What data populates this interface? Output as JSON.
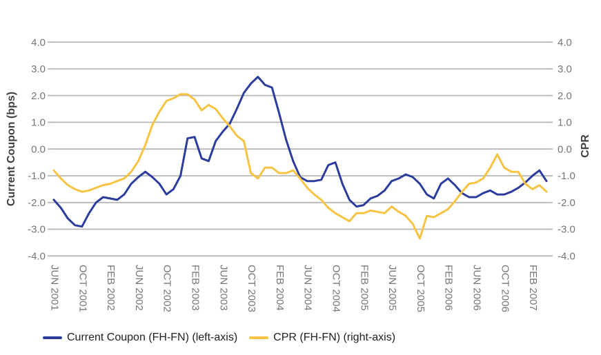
{
  "chart_data": {
    "type": "line",
    "title": "",
    "grid": true,
    "background": "#ffffff",
    "gridline_color": "#b7b7b7",
    "tick_label_color": "#757575",
    "axis_title_color": "#3c4043",
    "legend_text_color": "#202124",
    "left_axis": {
      "title": "Current Coupon (bps)",
      "min": -4.0,
      "max": 4.0,
      "tick_labels": [
        "4.0",
        "3.0",
        "2.0",
        "1.0",
        "0.0",
        "-1.0",
        "-2.0",
        "-3.0",
        "-4.0"
      ]
    },
    "right_axis": {
      "title": "CPR",
      "min": -4.0,
      "max": 4.0,
      "tick_labels": [
        "4.0",
        "3.0",
        "2.0",
        "1.0",
        "0.0",
        "-1.0",
        "-2.0",
        "-3.0",
        "-4.0"
      ]
    },
    "x_axis": {
      "tick_labels": [
        "JUN 2001",
        "OCT 2001",
        "FEB 2002",
        "JUN 2002",
        "OCT 2002",
        "FEB 2003",
        "JUN 2003",
        "OCT 2003",
        "FEB 2004",
        "JUN 2004",
        "OCT 2004",
        "FEB 2005",
        "JUN 2005",
        "OCT 2005",
        "FEB 2006",
        "JUN 2006",
        "OCT 2006",
        "FEB 2007"
      ],
      "points_per_tick_interval": 4,
      "n_points": 71,
      "frequency": "monthly",
      "first_point": "JUN 2001"
    },
    "series": [
      {
        "name": "Current Coupon (FH-FN) (left-axis)",
        "axis": "left",
        "color": "#2b3c9e",
        "values": [
          -1.9,
          -2.2,
          -2.6,
          -2.85,
          -2.9,
          -2.4,
          -2.0,
          -1.8,
          -1.85,
          -1.9,
          -1.7,
          -1.3,
          -1.05,
          -0.85,
          -1.05,
          -1.3,
          -1.7,
          -1.5,
          -1.0,
          0.4,
          0.45,
          -0.35,
          -0.45,
          0.3,
          0.65,
          0.95,
          1.5,
          2.1,
          2.45,
          2.7,
          2.4,
          2.3,
          1.35,
          0.35,
          -0.45,
          -1.05,
          -1.2,
          -1.2,
          -1.15,
          -0.6,
          -0.5,
          -1.3,
          -1.9,
          -2.15,
          -2.1,
          -1.85,
          -1.75,
          -1.55,
          -1.2,
          -1.1,
          -0.95,
          -1.05,
          -1.3,
          -1.7,
          -1.85,
          -1.3,
          -1.1,
          -1.35,
          -1.65,
          -1.8,
          -1.8,
          -1.65,
          -1.55,
          -1.7,
          -1.7,
          -1.6,
          -1.45,
          -1.25,
          -1.0,
          -0.8,
          -1.2
        ]
      },
      {
        "name": "CPR (FH-FN) (right-axis)",
        "axis": "right",
        "color": "#f6c342",
        "values": [
          -0.8,
          -1.1,
          -1.35,
          -1.5,
          -1.6,
          -1.55,
          -1.45,
          -1.35,
          -1.3,
          -1.2,
          -1.1,
          -0.85,
          -0.45,
          0.15,
          0.9,
          1.4,
          1.8,
          1.9,
          2.05,
          2.05,
          1.85,
          1.45,
          1.65,
          1.5,
          1.15,
          0.85,
          0.5,
          0.3,
          -0.9,
          -1.1,
          -0.7,
          -0.7,
          -0.9,
          -0.9,
          -0.8,
          -1.1,
          -1.45,
          -1.7,
          -1.9,
          -2.2,
          -2.4,
          -2.55,
          -2.7,
          -2.4,
          -2.4,
          -2.3,
          -2.35,
          -2.4,
          -2.15,
          -2.35,
          -2.5,
          -2.8,
          -3.35,
          -2.5,
          -2.55,
          -2.4,
          -2.25,
          -1.95,
          -1.6,
          -1.3,
          -1.25,
          -1.1,
          -0.7,
          -0.2,
          -0.7,
          -0.85,
          -0.85,
          -1.3,
          -1.5,
          -1.35,
          -1.6
        ]
      }
    ],
    "legend": {
      "position": "bottom-left",
      "items": [
        "Current Coupon (FH-FN) (left-axis)",
        "CPR (FH-FN) (right-axis)"
      ]
    }
  }
}
